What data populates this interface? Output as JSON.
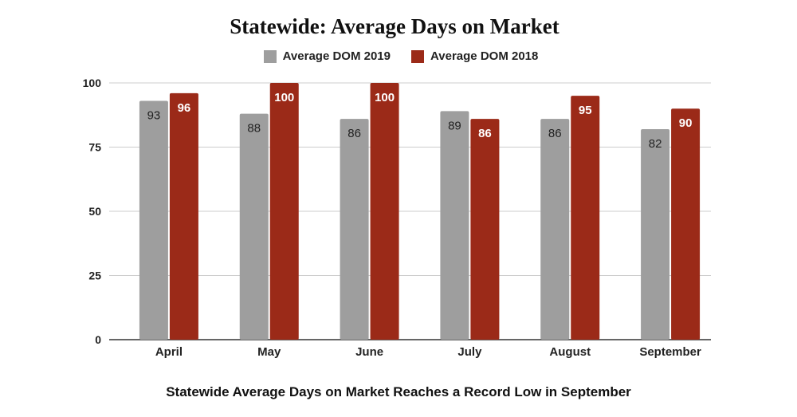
{
  "chart_data": {
    "type": "bar",
    "title": "Statewide: Average Days on Market",
    "caption": "Statewide Average Days on Market Reaches a Record Low in September",
    "categories": [
      "April",
      "May",
      "June",
      "July",
      "August",
      "September"
    ],
    "series": [
      {
        "name": "Average DOM 2019",
        "color": "#9e9e9e",
        "label_color": "#222222",
        "values": [
          93,
          88,
          86,
          89,
          86,
          82
        ]
      },
      {
        "name": "Average DOM 2018",
        "color": "#9b2a18",
        "label_color": "#ffffff",
        "values": [
          96,
          100,
          100,
          86,
          95,
          90
        ]
      }
    ],
    "ylim": [
      0,
      100
    ],
    "yticks": [
      0,
      25,
      50,
      75,
      100
    ],
    "xlabel": "",
    "ylabel": "",
    "grid": true,
    "legend_position": "top-center"
  }
}
